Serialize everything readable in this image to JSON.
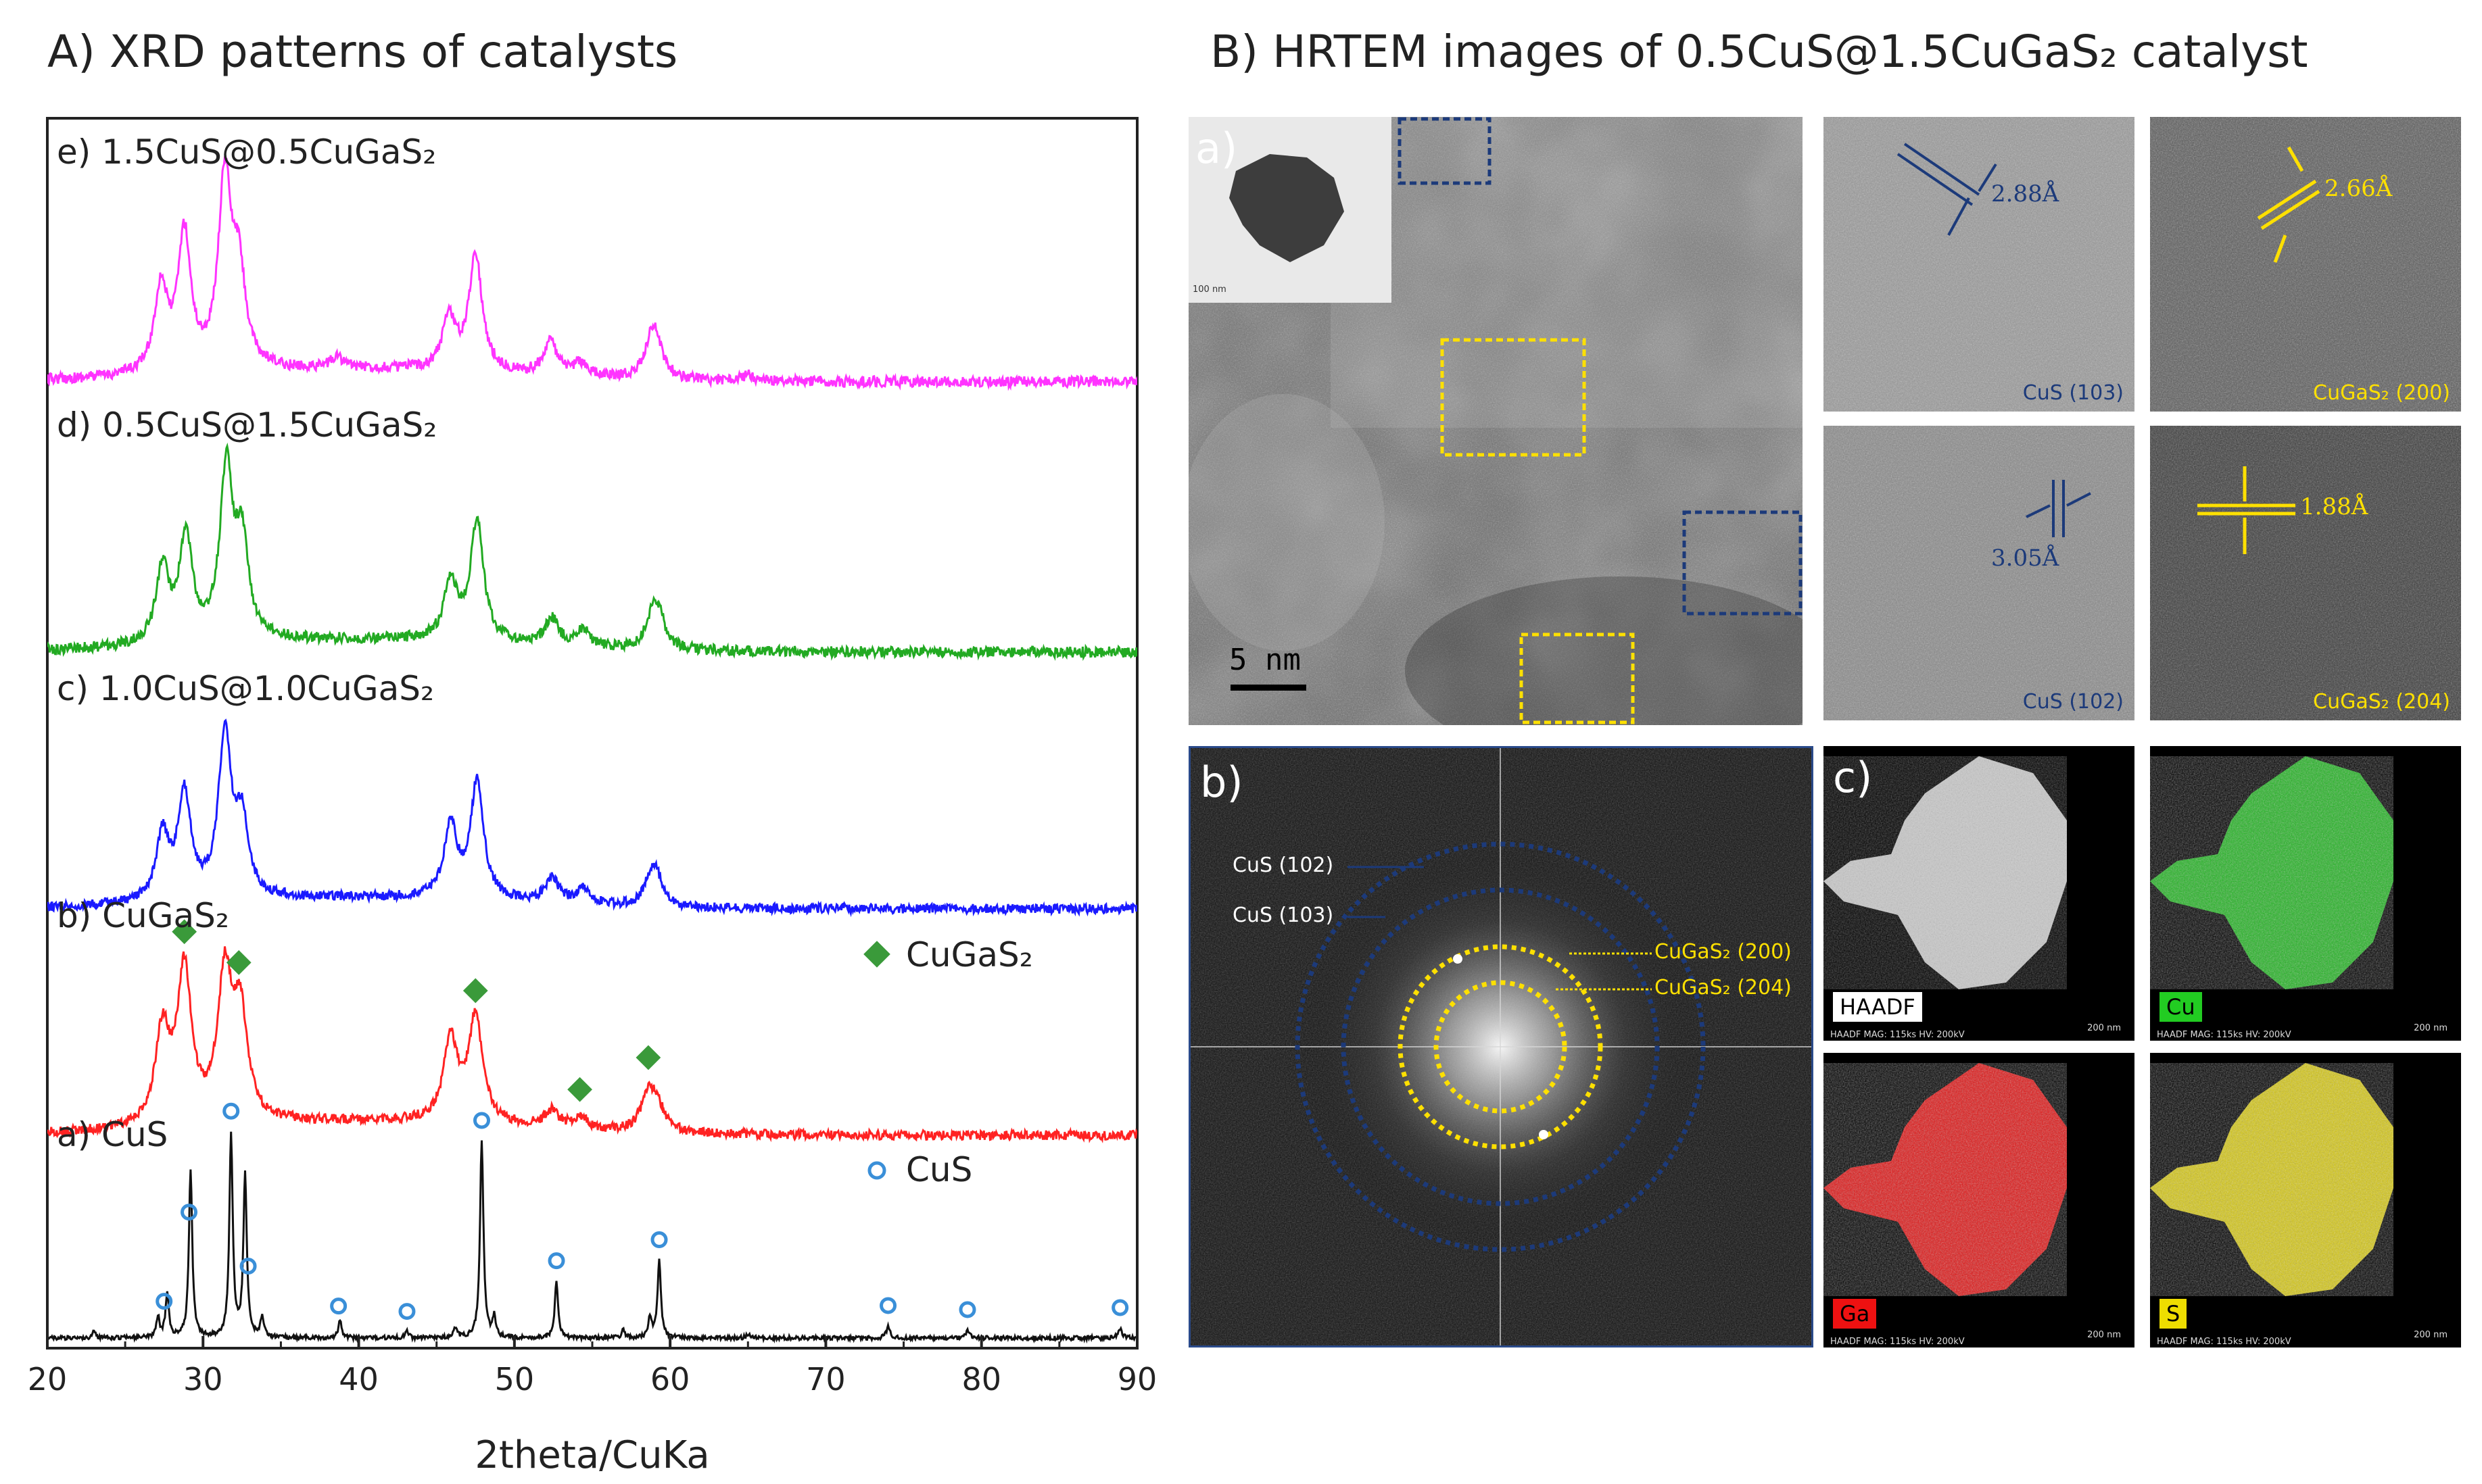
{
  "titles": {
    "panel_a": "A) XRD patterns of catalysts",
    "panel_b": "B) HRTEM images of 0.5CuS@1.5CuGaS₂ catalyst"
  },
  "colors": {
    "e": "#ff33ff",
    "d": "#22aa22",
    "c": "#1a1aff",
    "b": "#ff2222",
    "a": "#111111",
    "marker_cugas2": "#3a9a3a",
    "marker_cus": "#3a8fd8",
    "dark_blue": "#1c3a7a",
    "yellow": "#ffe000"
  },
  "chart_data": {
    "type": "line",
    "title": "A) XRD patterns of catalysts",
    "xlabel": "2theta/CuKa",
    "ylabel": "",
    "xlim": [
      20,
      90
    ],
    "xticks": [
      "20",
      "30",
      "40",
      "50",
      "60",
      "70",
      "80",
      "90"
    ],
    "grid": false,
    "series": [
      {
        "id": "e",
        "name": "e) 1.5CuS@0.5CuGaS₂",
        "peaks": [
          [
            27.3,
            0.45
          ],
          [
            28.8,
            0.72
          ],
          [
            31.4,
            1.0
          ],
          [
            32.3,
            0.48
          ],
          [
            45.8,
            0.28
          ],
          [
            47.5,
            0.62
          ],
          [
            52.3,
            0.18
          ],
          [
            54.2,
            0.07
          ],
          [
            58.8,
            0.2
          ],
          [
            59.2,
            0.12
          ],
          [
            38.6,
            0.06
          ],
          [
            65.0,
            0.03
          ]
        ]
      },
      {
        "id": "d",
        "name": "d) 0.5CuS@1.5CuGaS₂",
        "peaks": [
          [
            27.4,
            0.45
          ],
          [
            28.9,
            0.62
          ],
          [
            31.5,
            1.0
          ],
          [
            32.5,
            0.55
          ],
          [
            45.9,
            0.35
          ],
          [
            47.6,
            0.72
          ],
          [
            52.4,
            0.16
          ],
          [
            54.4,
            0.1
          ],
          [
            58.9,
            0.2
          ],
          [
            59.3,
            0.14
          ]
        ]
      },
      {
        "id": "c",
        "name": "c) 1.0CuS@1.0CuGaS₂",
        "peaks": [
          [
            27.4,
            0.4
          ],
          [
            28.8,
            0.65
          ],
          [
            31.4,
            1.0
          ],
          [
            32.5,
            0.45
          ],
          [
            45.9,
            0.45
          ],
          [
            47.6,
            0.72
          ],
          [
            52.4,
            0.16
          ],
          [
            54.4,
            0.1
          ],
          [
            58.8,
            0.17
          ],
          [
            59.2,
            0.12
          ]
        ]
      },
      {
        "id": "b",
        "name": "b) CuGaS₂",
        "peaks": [
          [
            27.4,
            0.55
          ],
          [
            28.8,
            0.9
          ],
          [
            31.4,
            0.85
          ],
          [
            32.4,
            0.6
          ],
          [
            45.9,
            0.48
          ],
          [
            47.5,
            0.62
          ],
          [
            52.4,
            0.1
          ],
          [
            54.2,
            0.07
          ],
          [
            58.6,
            0.22
          ],
          [
            59.2,
            0.12
          ]
        ]
      },
      {
        "id": "a",
        "name": "a) CuS",
        "peaks": [
          [
            27.1,
            0.1
          ],
          [
            27.7,
            0.22
          ],
          [
            29.2,
            0.82
          ],
          [
            31.8,
            1.0
          ],
          [
            32.7,
            0.8
          ],
          [
            33.8,
            0.1
          ],
          [
            38.8,
            0.09
          ],
          [
            43.1,
            0.03
          ],
          [
            46.2,
            0.05
          ],
          [
            47.9,
            0.97
          ],
          [
            48.7,
            0.1
          ],
          [
            52.7,
            0.28
          ],
          [
            57.0,
            0.04
          ],
          [
            58.7,
            0.1
          ],
          [
            59.3,
            0.38
          ],
          [
            74.0,
            0.06
          ],
          [
            79.1,
            0.04
          ],
          [
            88.9,
            0.05
          ],
          [
            23.0,
            0.03
          ],
          [
            65.0,
            0.02
          ]
        ]
      }
    ],
    "markers": {
      "cugas2": {
        "legend": "CuGaS₂",
        "x": [
          28.8,
          32.3,
          47.5,
          54.2,
          58.6
        ]
      },
      "cus": {
        "legend": "CuS",
        "x": [
          27.5,
          29.1,
          31.8,
          32.9,
          38.7,
          43.1,
          47.9,
          52.7,
          59.3,
          74.0,
          79.1,
          88.9
        ]
      }
    }
  },
  "hrtem": {
    "main_label": "a)",
    "scale_bar": "5 nm",
    "inset_scale": "100 nm",
    "insets": [
      {
        "d": "2.88Å",
        "plane": "CuS (103)"
      },
      {
        "d": "2.66Å",
        "plane": "CuGaS₂ (200)"
      },
      {
        "d": "3.05Å",
        "plane": "CuS (102)"
      },
      {
        "d": "1.88Å",
        "plane": "CuGaS₂ (204)"
      }
    ]
  },
  "fft": {
    "label": "b)",
    "rings": [
      "CuS (102)",
      "CuS (103)",
      "CuGaS₂ (200)",
      "CuGaS₂ (204)"
    ]
  },
  "eds": {
    "label": "c)",
    "maps": [
      {
        "name": "HAADF",
        "scale": "200 nm",
        "info": "HAADF  MAG: 115ks  HV: 200kV"
      },
      {
        "name": "Cu",
        "scale": "200 nm",
        "info": "HAADF  MAG: 115ks  HV: 200kV"
      },
      {
        "name": "Ga",
        "scale": "200 nm",
        "info": "HAADF  MAG: 115ks  HV: 200kV"
      },
      {
        "name": "S",
        "scale": "200 nm",
        "info": "HAADF  MAG: 115ks  HV: 200kV"
      }
    ]
  }
}
